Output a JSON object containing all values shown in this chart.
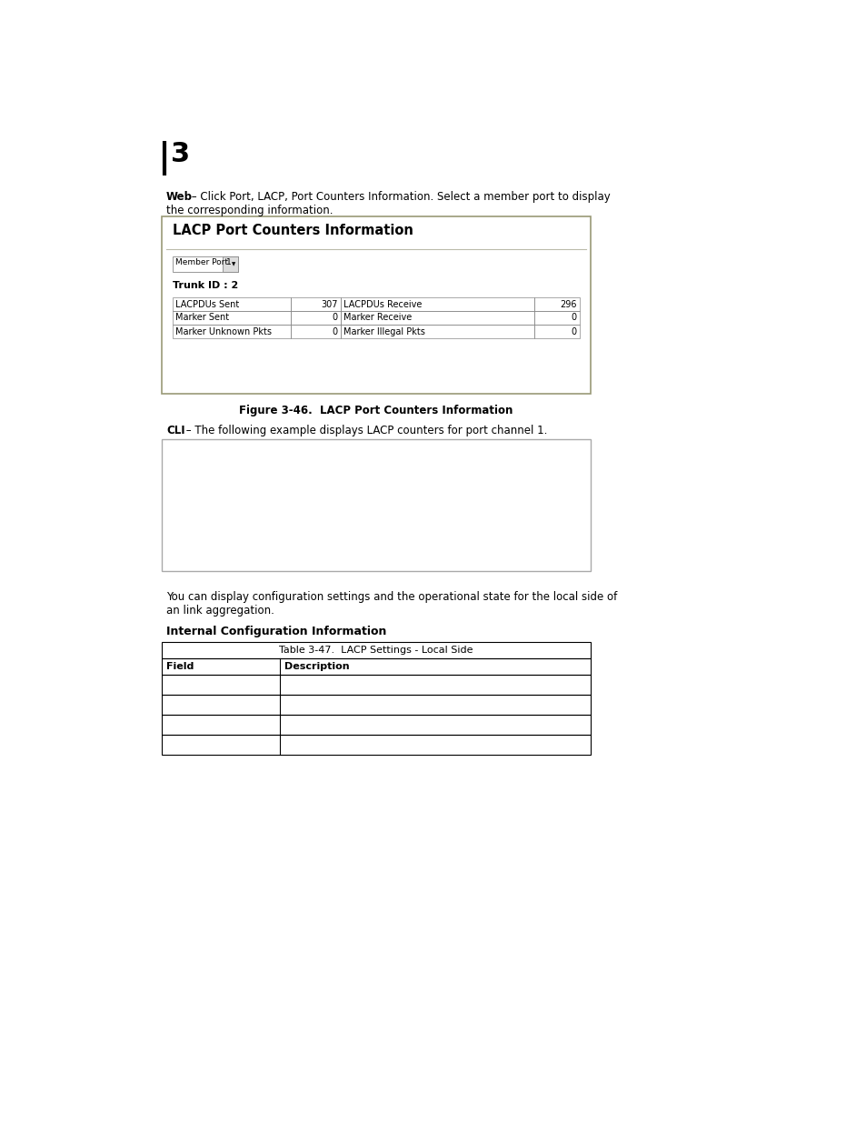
{
  "background_color": "#ffffff",
  "page_width": 9.54,
  "page_height": 12.35,
  "chapter_number": "3",
  "web_bold": "Web",
  "web_rest": " – Click Port, LACP, Port Counters Information. Select a member port to display",
  "web_line2": "the corresponding information.",
  "figure_caption": "Figure 3-46.  LACP Port Counters Information",
  "cli_bold": "CLI",
  "cli_rest": " – The following example displays LACP counters for port channel 1.",
  "body_line1": "You can display configuration settings and the operational state for the local side of",
  "body_line2": "an link aggregation.",
  "internal_config_heading": "Internal Configuration Information",
  "lacp_box_title": "LACP Port Counters Information",
  "trunk_id_text": "Trunk ID : 2",
  "lacp_table_rows": [
    [
      "LACPDUs Sent",
      "307",
      "LACPDUs Receive",
      "296"
    ],
    [
      "Marker Sent",
      "0",
      "Marker Receive",
      "0"
    ],
    [
      "Marker Unknown Pkts",
      "0",
      "Marker Illegal Pkts",
      "0"
    ]
  ],
  "settings_table_title": "Table 3-47.  LACP Settings - Local Side",
  "settings_table_headers": [
    "Field",
    "Description"
  ],
  "settings_table_empty_rows": 4,
  "font_body": 8.5,
  "font_chapter": 22,
  "font_caption": 8.5,
  "font_table_title": 8.0,
  "font_lacp_title": 10.5,
  "font_small": 7.0
}
